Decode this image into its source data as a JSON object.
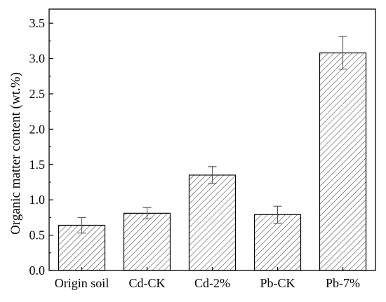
{
  "chart_data": {
    "type": "bar",
    "title": "",
    "xlabel": "",
    "ylabel": "Organic matter content (wt.%)",
    "categories": [
      "Origin soil",
      "Cd-CK",
      "Cd-2%",
      "Pb-CK",
      "Pb-7%"
    ],
    "values": [
      0.64,
      0.81,
      1.35,
      0.79,
      3.08
    ],
    "errors": [
      0.11,
      0.08,
      0.12,
      0.12,
      0.23
    ],
    "ylim": [
      0,
      3.7
    ],
    "yticks": [
      "0.0",
      "0.5",
      "1.0",
      "1.5",
      "2.0",
      "2.5",
      "3.0",
      "3.5"
    ],
    "grid": false,
    "legend": "none",
    "bar_pattern": "diagonal-hatch",
    "colors": {
      "bar_fill": "#ffffff",
      "bar_stroke": "#000000",
      "hatch": "#333333"
    }
  }
}
